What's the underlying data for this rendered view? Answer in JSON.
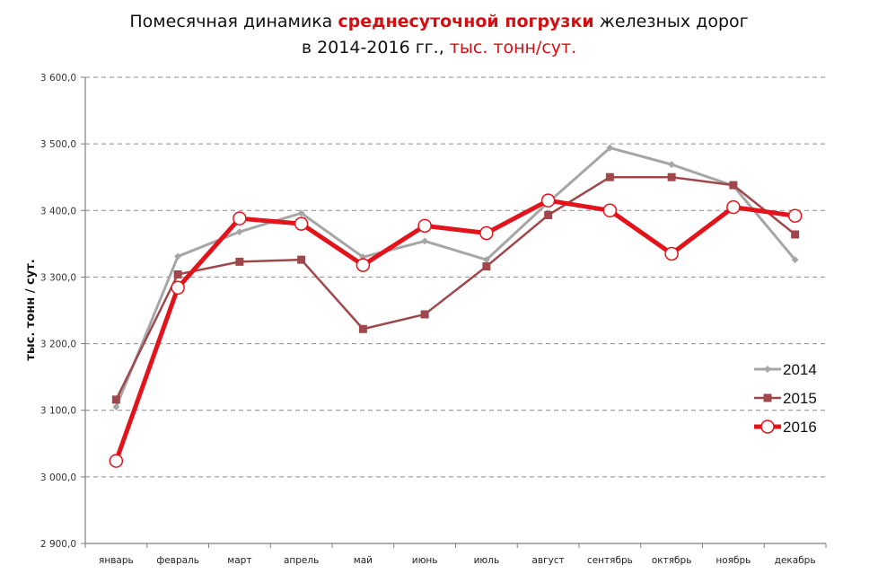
{
  "title": {
    "line1_prefix": "Помесячная динамика ",
    "line1_highlight": "среднесуточной погрузки",
    "line1_suffix": " железных дорог",
    "line2_prefix": "в 2014-2016 гг., ",
    "line2_highlight": "тыс. тонн/сут."
  },
  "colors": {
    "s2014": "#a6a6a6",
    "s2015": "#a0474b",
    "s2016": "#e3131b",
    "grid": "#8c8c8c",
    "axis": "#7f7f7f"
  },
  "chart_data": {
    "type": "line",
    "title": "Помесячная динамика среднесуточной погрузки железных дорог в 2014-2016 гг., тыс. тонн/сут.",
    "xlabel": "",
    "ylabel": "тыс. тонн / сут.",
    "ylim": [
      2900,
      3600
    ],
    "yticks": [
      "2 900,0",
      "3 000,0",
      "3 100,0",
      "3 200,0",
      "3 300,0",
      "3 400,0",
      "3 500,0",
      "3 600,0"
    ],
    "grid": "horizontal dashed",
    "legend_position": "right, lower-middle",
    "categories": [
      "январь",
      "февраль",
      "март",
      "апрель",
      "май",
      "июнь",
      "июль",
      "август",
      "сентябрь",
      "октябрь",
      "ноябрь",
      "декабрь"
    ],
    "series": [
      {
        "name": "2014",
        "marker": "diamond",
        "values": [
          3105,
          3331,
          3368,
          3396,
          3330,
          3354,
          3326,
          3412,
          3494,
          3469,
          3437,
          3326
        ]
      },
      {
        "name": "2015",
        "marker": "square",
        "values": [
          3116,
          3304,
          3323,
          3326,
          3222,
          3244,
          3316,
          3393,
          3450,
          3450,
          3438,
          3364
        ]
      },
      {
        "name": "2016",
        "marker": "circle",
        "values": [
          3024,
          3284,
          3388,
          3380,
          3318,
          3377,
          3366,
          3415,
          3400,
          3335,
          3405,
          3392
        ]
      }
    ]
  }
}
